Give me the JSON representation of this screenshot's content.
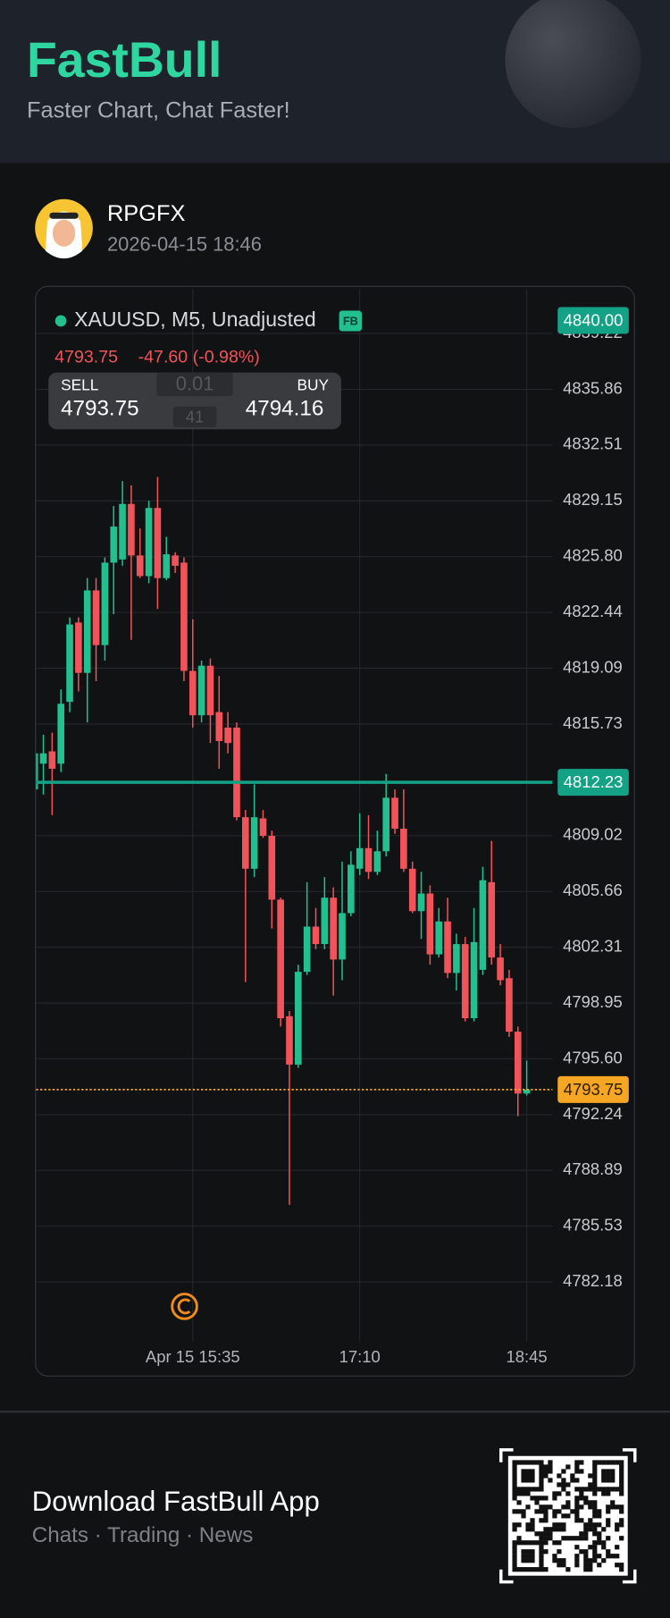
{
  "header": {
    "brand": "FastBull",
    "tagline": "Faster Chart, Chat Faster!"
  },
  "user": {
    "name": "RPGFX",
    "timestamp": "2026-04-15 18:46"
  },
  "quote": {
    "last": "4793.75",
    "change": "-47.60 (-0.98%)"
  },
  "trade_panel": {
    "sell_label": "SELL",
    "sell_price": "4793.75",
    "lot": "0.01",
    "spread": "41",
    "buy_label": "BUY",
    "buy_price": "4794.16"
  },
  "footer": {
    "title": "Download FastBull App",
    "subtitle": "Chats · Trading · News"
  },
  "chart_data": {
    "type": "candlestick",
    "title": "XAUUSD, M5, Unadjusted",
    "badge": "FB",
    "categories": [
      null,
      null,
      null,
      null,
      null,
      null,
      null,
      null,
      null,
      null,
      null,
      null,
      null,
      null,
      null,
      null,
      null,
      null,
      "Apr 15 15:35",
      null,
      null,
      null,
      null,
      null,
      null,
      null,
      null,
      null,
      null,
      null,
      null,
      null,
      null,
      null,
      null,
      null,
      null,
      "17:10",
      null,
      null,
      null,
      null,
      null,
      null,
      null,
      null,
      null,
      null,
      null,
      null,
      null,
      null,
      null,
      null,
      null,
      null,
      "18:45"
    ],
    "open": [
      4811.8,
      4813.35,
      4814.09,
      4813.35,
      4817.07,
      4821.84,
      4818.81,
      4823.77,
      4820.48,
      4825.44,
      4825.63,
      4828.97,
      4825.87,
      4824.63,
      4828.73,
      4824.51,
      4825.87,
      4825.44,
      4818.93,
      4816.26,
      4819.24,
      4816.45,
      4815.52,
      4815.52,
      4810.13,
      4807.03,
      4810.06,
      4809.01,
      4805.17,
      4798.16,
      4795.25,
      4800.83,
      4803.55,
      4802.5,
      4805.29,
      4801.57,
      4804.36,
      4807.03,
      4808.27,
      4806.84,
      4808.08,
      4811.3,
      4809.44,
      4807.03,
      4804.48,
      4805.54,
      4801.88,
      4803.86,
      4800.76,
      4802.5,
      4798.04,
      4800.95,
      4806.22,
      4801.69,
      4800.45,
      4797.23,
      4793.51
    ],
    "high": [
      4816.45,
      4815.09,
      4815.21,
      4817.81,
      4822.15,
      4822.15,
      4824.51,
      4824.51,
      4825.75,
      4828.85,
      4830.34,
      4830.09,
      4827.49,
      4829.16,
      4830.59,
      4826.99,
      4826.06,
      4825.75,
      4822.03,
      4819.55,
      4819.67,
      4818.62,
      4816.45,
      4815.83,
      4810.56,
      4812.11,
      4810.56,
      4809.32,
      4805.29,
      4798.47,
      4801.26,
      4806.22,
      4804.67,
      4806.53,
      4805.91,
      4807.46,
      4808.08,
      4810.37,
      4810.25,
      4809.32,
      4812.73,
      4811.8,
      4811.8,
      4807.46,
      4806.84,
      4806.03,
      4804.67,
      4805.29,
      4803.12,
      4802.93,
      4804.67,
      4807.15,
      4808.7,
      4802.5,
      4800.95,
      4797.54,
      4795.49
    ],
    "low": [
      4809.94,
      4811.49,
      4810.25,
      4812.85,
      4816.45,
      4817.69,
      4815.83,
      4818.31,
      4819.55,
      4822.34,
      4825.25,
      4820.79,
      4824.51,
      4824.2,
      4822.65,
      4824.39,
      4824.82,
      4818.31,
      4815.52,
      4815.83,
      4814.59,
      4813.04,
      4813.97,
      4809.94,
      4800.21,
      4806.53,
      4808.89,
      4803.43,
      4797.54,
      4786.81,
      4795.06,
      4800.64,
      4802.19,
      4802.19,
      4799.4,
      4800.33,
      4804.17,
      4806.65,
      4806.41,
      4806.65,
      4807.77,
      4809.13,
      4806.84,
      4804.36,
      4802.81,
      4801.26,
      4801.69,
      4800.45,
      4799.71,
      4797.85,
      4797.85,
      4800.64,
      4801.26,
      4800.02,
      4796.92,
      4792.15,
      4793.39
    ],
    "close": [
      4813.97,
      4813.97,
      4813.04,
      4816.95,
      4821.72,
      4818.81,
      4823.77,
      4820.48,
      4825.44,
      4827.61,
      4828.97,
      4825.87,
      4824.63,
      4828.73,
      4824.51,
      4825.94,
      4825.25,
      4818.93,
      4816.26,
      4819.24,
      4816.26,
      4814.71,
      4814.59,
      4810.13,
      4807.03,
      4810.13,
      4809.01,
      4805.17,
      4798.04,
      4795.25,
      4800.83,
      4803.55,
      4802.5,
      4805.29,
      4801.57,
      4804.36,
      4807.27,
      4808.27,
      4806.84,
      4808.08,
      4811.3,
      4809.44,
      4807.03,
      4804.48,
      4805.54,
      4801.88,
      4803.86,
      4800.76,
      4802.5,
      4798.04,
      4802.62,
      4806.34,
      4801.69,
      4800.33,
      4797.23,
      4793.51,
      4793.75
    ],
    "up_color": "#22c08e",
    "down_color": "#f0545a",
    "ylim": [
      4778.6,
      4841.9
    ],
    "yticks": [
      4839.22,
      4835.86,
      4832.51,
      4829.15,
      {
        "value": 4825.8,
        "label": "4825.80"
      },
      4822.44,
      4819.09,
      4815.73,
      4809.02,
      4805.66,
      4802.31,
      4798.95,
      {
        "value": 4795.6,
        "label": "4795.60"
      },
      4792.24,
      4788.89,
      4785.53,
      4782.18
    ],
    "grid": true,
    "price_markers": [
      {
        "value": 4840,
        "label": "4840.00",
        "color": "#14a286",
        "line": "none"
      },
      {
        "value": 4812.23,
        "color": "#14a286",
        "line": "solid"
      },
      {
        "value": 4793.75,
        "color": "#f5a623",
        "line": "dotted"
      }
    ]
  }
}
